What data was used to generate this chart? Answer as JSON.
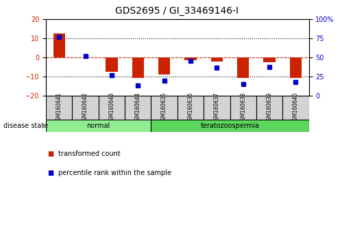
{
  "title": "GDS2695 / GI_33469146-I",
  "samples": [
    "GSM160641",
    "GSM160642",
    "GSM160643",
    "GSM160644",
    "GSM160635",
    "GSM160636",
    "GSM160637",
    "GSM160638",
    "GSM160639",
    "GSM160640"
  ],
  "transformed_count": [
    12.5,
    0.2,
    -7.5,
    -10.5,
    -9.0,
    -1.5,
    -2.0,
    -10.5,
    -2.5,
    -10.5
  ],
  "percentile_rank": [
    77,
    52,
    27,
    14,
    20,
    46,
    37,
    15,
    38,
    18
  ],
  "groups": [
    {
      "label": "normal",
      "start": 0,
      "end": 4,
      "color": "#90ee90"
    },
    {
      "label": "teratozoospermia",
      "start": 4,
      "end": 10,
      "color": "#5cd65c"
    }
  ],
  "ylim_left": [
    -20,
    20
  ],
  "ylim_right": [
    0,
    100
  ],
  "yticks_left": [
    -20,
    -10,
    0,
    10,
    20
  ],
  "yticks_right": [
    0,
    25,
    50,
    75,
    100
  ],
  "bar_color": "#cc2200",
  "dot_color": "#0000cc",
  "dashed_zero_color": "#cc2200",
  "sample_cell_color": "#d3d3d3",
  "label_transformed": "transformed count",
  "label_percentile": "percentile rank within the sample",
  "disease_state_label": "disease state",
  "tick_label_fontsize": 7,
  "title_fontsize": 10,
  "bar_width": 0.45
}
